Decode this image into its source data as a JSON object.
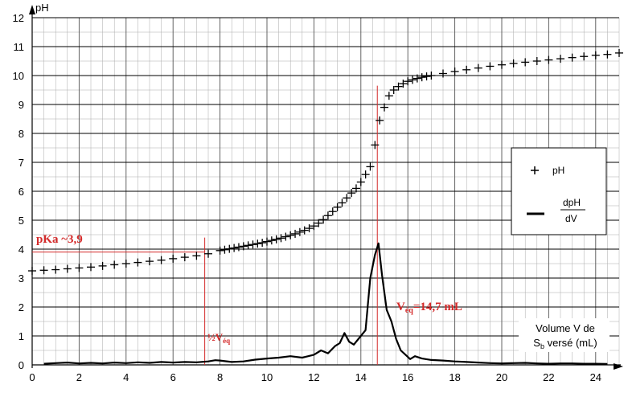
{
  "chart_data": {
    "type": "line",
    "y_axis_label": "pH",
    "x_axis_label": {
      "line1": "Volume V de",
      "line2_main": "S",
      "line2_sub": "b",
      "line2_rest": " versé (mL)"
    },
    "xlim": [
      0,
      25
    ],
    "ylim": [
      0,
      12
    ],
    "x_ticks": [
      "0",
      "2",
      "4",
      "6",
      "8",
      "10",
      "12",
      "14",
      "16",
      "18",
      "20",
      "22",
      "24"
    ],
    "y_ticks": [
      "0",
      "1",
      "2",
      "3",
      "4",
      "5",
      "6",
      "7",
      "8",
      "9",
      "10",
      "11",
      "12"
    ],
    "grid": true,
    "legend": {
      "placement": "right",
      "ph_label": "pH",
      "deriv_numerator": "dpH",
      "deriv_denominator": "dV"
    },
    "annotations": {
      "pka": {
        "text": "pKa ~3,9",
        "value": 3.9
      },
      "half_veq": {
        "prefix": "½V",
        "sub": "éq",
        "value": 7.35
      },
      "veq": {
        "prefix": "V",
        "sub": "éq",
        "rest": "=14,7 mL",
        "value": 14.7
      }
    },
    "colors": {
      "annotation": "#d42a2a",
      "grid_minor": "#aaaaaa",
      "grid_major": "#000000"
    },
    "series": [
      {
        "name": "pH",
        "marker": "plus",
        "x": [
          0,
          0.5,
          1,
          1.5,
          2,
          2.5,
          3,
          3.5,
          4,
          4.5,
          5,
          5.5,
          6,
          6.5,
          7,
          7.5,
          8,
          8.2,
          8.4,
          8.6,
          8.8,
          9,
          9.2,
          9.4,
          9.6,
          9.8,
          10,
          10.2,
          10.4,
          10.6,
          10.8,
          11,
          11.2,
          11.4,
          11.6,
          11.8,
          12,
          12.2,
          12.4,
          12.6,
          12.8,
          13,
          13.2,
          13.4,
          13.6,
          13.8,
          14,
          14.2,
          14.4,
          14.6,
          14.8,
          15,
          15.2,
          15.4,
          15.6,
          15.8,
          16,
          16.2,
          16.4,
          16.6,
          16.8,
          17,
          17.5,
          18,
          18.5,
          19,
          19.5,
          20,
          20.5,
          21,
          21.5,
          22,
          22.5,
          23,
          23.5,
          24,
          24.5,
          25
        ],
        "y": [
          3.25,
          3.27,
          3.29,
          3.32,
          3.35,
          3.38,
          3.42,
          3.46,
          3.5,
          3.54,
          3.58,
          3.62,
          3.67,
          3.72,
          3.77,
          3.84,
          3.95,
          3.98,
          4.01,
          4.04,
          4.07,
          4.1,
          4.13,
          4.16,
          4.19,
          4.22,
          4.26,
          4.3,
          4.34,
          4.38,
          4.43,
          4.48,
          4.53,
          4.59,
          4.65,
          4.72,
          4.8,
          4.9,
          5.02,
          5.16,
          5.3,
          5.45,
          5.6,
          5.77,
          5.94,
          6.1,
          6.32,
          6.58,
          6.85,
          7.6,
          8.45,
          8.9,
          9.3,
          9.5,
          9.62,
          9.72,
          9.8,
          9.85,
          9.9,
          9.94,
          9.97,
          10.0,
          10.07,
          10.14,
          10.2,
          10.26,
          10.32,
          10.37,
          10.42,
          10.46,
          10.5,
          10.54,
          10.58,
          10.62,
          10.66,
          10.7,
          10.73,
          10.78
        ]
      },
      {
        "name": "dpH/dV",
        "marker": "line",
        "x": [
          0.5,
          1,
          1.5,
          2,
          2.5,
          3,
          3.5,
          4,
          4.5,
          5,
          5.5,
          6,
          6.5,
          7,
          7.5,
          7.8,
          8,
          8.5,
          9,
          9.5,
          10,
          10.5,
          11,
          11.5,
          12,
          12.3,
          12.6,
          12.9,
          13.1,
          13.3,
          13.5,
          13.7,
          14,
          14.2,
          14.4,
          14.6,
          14.75,
          14.9,
          15.1,
          15.3,
          15.5,
          15.7,
          15.9,
          16.1,
          16.3,
          16.6,
          17,
          17.5,
          18,
          18.5,
          19,
          19.5,
          20,
          20.5,
          21,
          21.5,
          22,
          22.5,
          23,
          23.5,
          24,
          24.5
        ],
        "y": [
          0.04,
          0.06,
          0.08,
          0.05,
          0.07,
          0.05,
          0.08,
          0.06,
          0.09,
          0.07,
          0.1,
          0.08,
          0.1,
          0.09,
          0.12,
          0.16,
          0.15,
          0.1,
          0.12,
          0.18,
          0.22,
          0.25,
          0.3,
          0.25,
          0.35,
          0.5,
          0.4,
          0.65,
          0.75,
          1.1,
          0.8,
          0.7,
          1.0,
          1.2,
          3.0,
          3.8,
          4.2,
          3.1,
          1.9,
          1.5,
          0.9,
          0.5,
          0.35,
          0.2,
          0.3,
          0.22,
          0.17,
          0.15,
          0.12,
          0.1,
          0.08,
          0.06,
          0.05,
          0.06,
          0.07,
          0.05,
          0.04,
          0.05,
          0.05,
          0.04,
          0.04,
          0.03
        ]
      }
    ]
  }
}
